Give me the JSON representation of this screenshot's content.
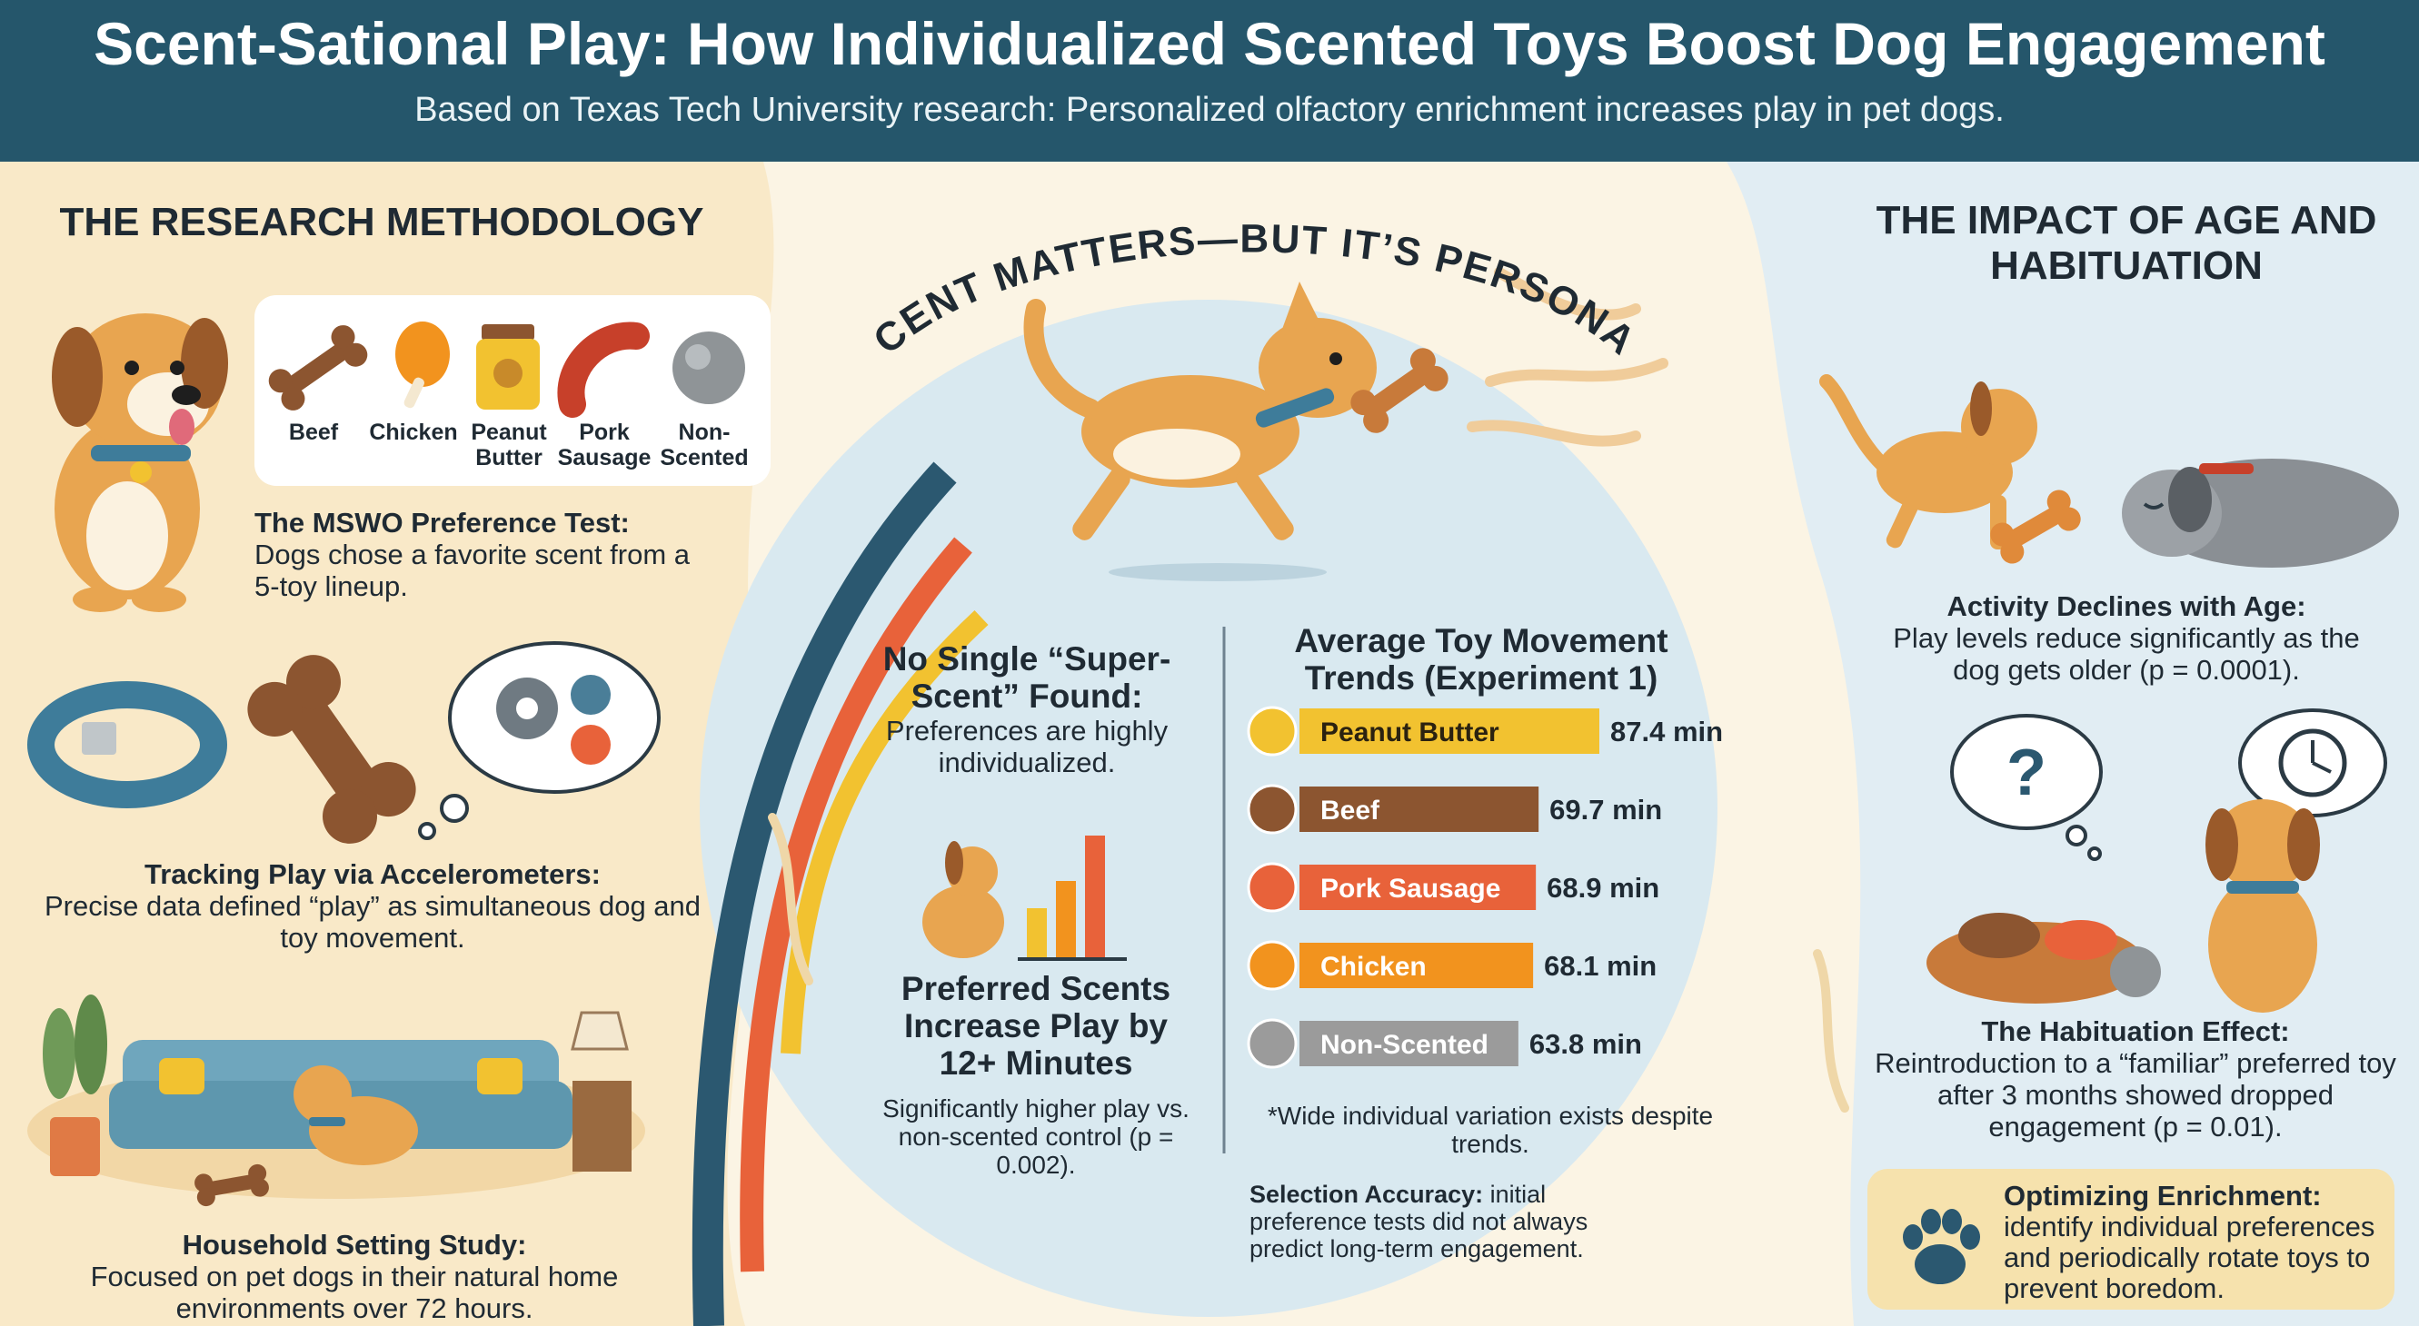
{
  "header": {
    "title": "Scent-Sational Play: How Individualized Scented Toys Boost Dog Engagement",
    "subtitle": "Based on Texas Tech University research: Personalized olfactory enrichment increases play in pet dogs."
  },
  "left": {
    "heading": "THE RESEARCH METHODOLOGY",
    "toys": [
      "Beef",
      "Chicken",
      "Peanut Butter",
      "Pork Sausage",
      "Non-Scented"
    ],
    "mswo_title": "The MSWO Preference Test:",
    "mswo_text": "Dogs chose a favorite scent from a 5-toy lineup.",
    "accel_title": "Tracking Play via Accelerometers:",
    "accel_text": "Precise data defined “play” as simultaneous dog and toy movement.",
    "household_title": "Household Setting Study:",
    "household_text": "Focused on pet dogs in their natural home environments over 72 hours."
  },
  "center": {
    "arc_title": "SCENT MATTERS—BUT IT’S PERSONAL",
    "no_single_title": "No Single “Super-Scent” Found:",
    "no_single_text": "Preferences are highly individualized.",
    "preferred_title": "Preferred Scents Increase Play by 12+ Minutes",
    "preferred_text": "Significantly higher play vs. non-scented control (p = 0.002).",
    "footnote": "*Wide individual variation exists despite trends.",
    "selection_title": "Selection Accuracy:",
    "selection_text": "initial preference tests did not always predict long-term engagement."
  },
  "chart_data": {
    "type": "bar",
    "title": "Average Toy Movement Trends (Experiment 1)",
    "categories": [
      "Peanut Butter",
      "Beef",
      "Pork Sausage",
      "Chicken",
      "Non-Scented"
    ],
    "values": [
      87.4,
      69.7,
      68.9,
      68.1,
      63.8
    ],
    "value_labels": [
      "87.4 min",
      "69.7 min",
      "68.9 min",
      "68.1 min",
      "63.8 min"
    ],
    "colors": [
      "#f2c230",
      "#8c5530",
      "#e8623a",
      "#f2931e",
      "#9b9b9b"
    ],
    "orientation": "horizontal"
  },
  "right": {
    "heading": "THE IMPACT OF AGE AND HABITUATION",
    "age_title": "Activity Declines with Age:",
    "age_text": "Play levels reduce significantly as the dog gets older (p = 0.0001).",
    "habit_title": "The Habituation Effect:",
    "habit_text": "Reintroduction to a “familiar” preferred toy after 3 months showed dropped engagement (p = 0.01).",
    "optimize_title": "Optimizing Enrichment:",
    "optimize_text": "identify individual preferences and periodically rotate toys to prevent boredom."
  }
}
